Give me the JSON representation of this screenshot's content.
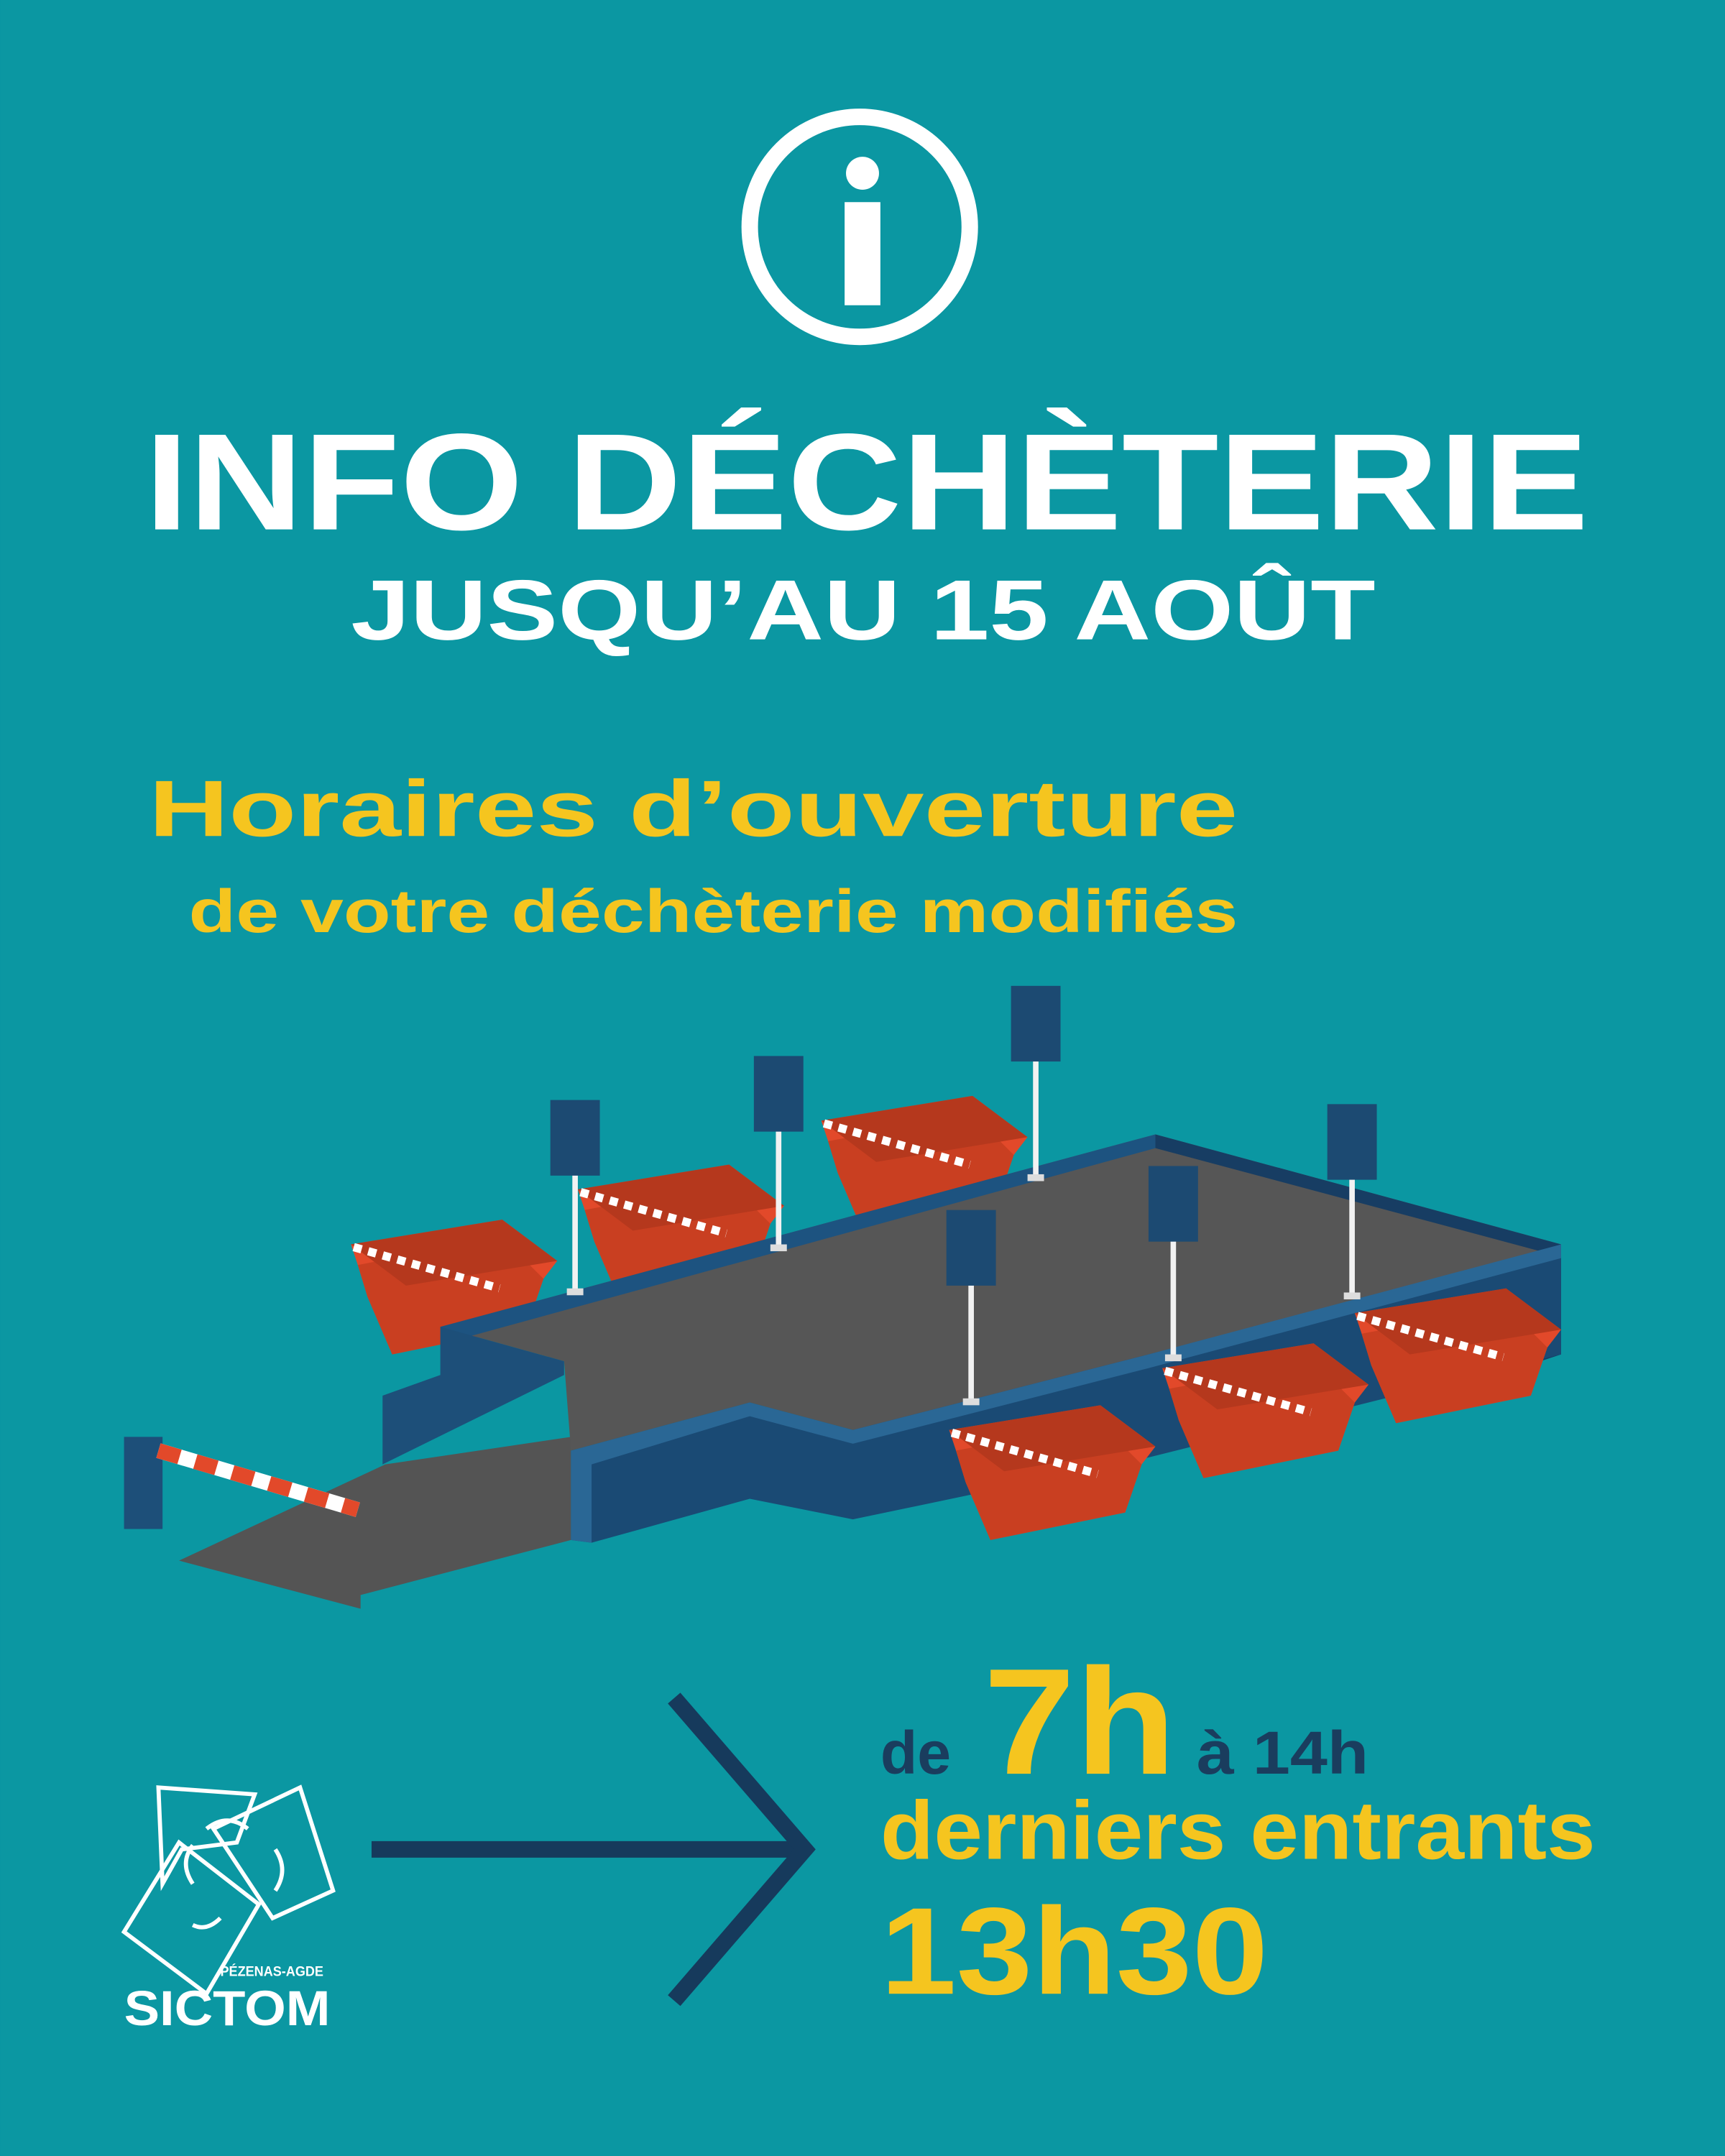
{
  "header": {
    "title": "INFO DÉCHÈTERIE",
    "subtitle": "JUSQU’AU 15 AOÛT"
  },
  "notice": {
    "heading": "Horaires d’ouverture",
    "subheading": "de votre déchèterie modifiés"
  },
  "hours": {
    "prefix": "de",
    "open": "7h",
    "close": "à 14h",
    "last_entry_label": "derniers entrants",
    "last_entry_time": "13h30"
  },
  "logo": {
    "region": "PÉZENAS-AGDE",
    "name": "SICTOM"
  }
}
